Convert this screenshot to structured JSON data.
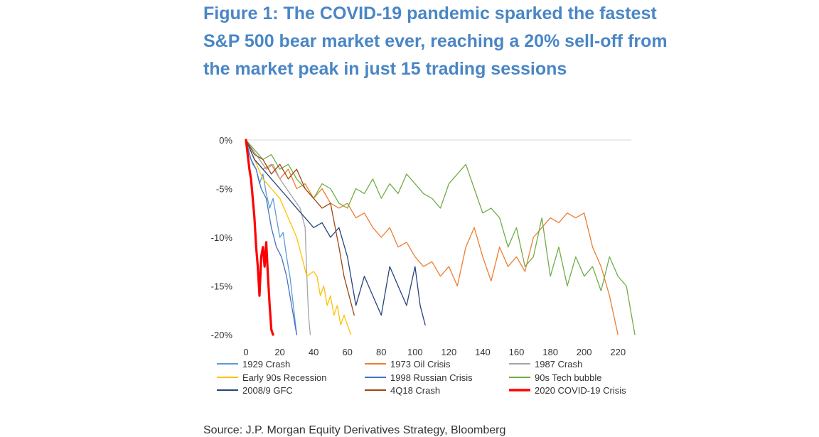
{
  "title": "Figure 1: The COVID-19 pandemic sparked the fastest S&P 500 bear market ever, reaching a 20% sell-off from the market peak in just 15 trading sessions",
  "source": "Source: J.P. Morgan Equity Derivatives Strategy, Bloomberg",
  "chart_data": {
    "type": "line",
    "title": "Figure 1: The COVID-19 pandemic sparked the fastest S&P 500 bear market ever, reaching a 20% sell-off from the market peak in just 15 trading sessions",
    "xlabel": "",
    "ylabel": "",
    "xlim": [
      0,
      230
    ],
    "ylim": [
      -20,
      0
    ],
    "xticks": [
      0,
      20,
      40,
      60,
      80,
      100,
      120,
      140,
      160,
      180,
      200,
      220
    ],
    "yticks": [
      0,
      -5,
      -10,
      -15,
      -20
    ],
    "ytick_labels": [
      "0%",
      "-5%",
      "-10%",
      "-15%",
      "-20%"
    ],
    "grid": "horizontal at 0% only",
    "legend_position": "bottom",
    "series": [
      {
        "name": "1929 Crash",
        "color": "#5b9bd5",
        "width": 1.3,
        "x": [
          0,
          2,
          4,
          6,
          8,
          10,
          12,
          14,
          16,
          18,
          20,
          22,
          24,
          26,
          28,
          30
        ],
        "y": [
          0,
          -1.5,
          -2.5,
          -3,
          -4.5,
          -3.5,
          -5.5,
          -7,
          -6,
          -8,
          -10,
          -9.5,
          -12,
          -14,
          -17,
          -20
        ]
      },
      {
        "name": "1973 Oil Crisis",
        "color": "#ed7d31",
        "width": 1.3,
        "x": [
          0,
          5,
          10,
          15,
          20,
          25,
          30,
          35,
          40,
          45,
          50,
          55,
          60,
          65,
          70,
          75,
          80,
          85,
          90,
          95,
          100,
          105,
          110,
          115,
          120,
          125,
          130,
          135,
          140,
          145,
          150,
          155,
          160,
          165,
          170,
          175,
          180,
          185,
          190,
          195,
          200,
          205,
          210,
          215,
          220
        ],
        "y": [
          0,
          -2,
          -3,
          -2.5,
          -4,
          -3,
          -5,
          -4.5,
          -6,
          -5,
          -6.5,
          -7,
          -6.5,
          -8,
          -7.5,
          -9,
          -10,
          -9,
          -11,
          -10.5,
          -12,
          -13,
          -12.5,
          -14,
          -13,
          -15,
          -11,
          -9,
          -12,
          -14.5,
          -11,
          -13,
          -12,
          -13.5,
          -10,
          -9,
          -8,
          -8.5,
          -7.5,
          -8,
          -7.5,
          -11,
          -13,
          -16,
          -20
        ]
      },
      {
        "name": "1987 Crash",
        "color": "#a5a5a5",
        "width": 1.3,
        "x": [
          0,
          4,
          8,
          12,
          16,
          20,
          24,
          28,
          32,
          35,
          36,
          37,
          38
        ],
        "y": [
          0,
          -1,
          -2,
          -3,
          -2.5,
          -4,
          -5,
          -6,
          -7,
          -9,
          -14,
          -18,
          -20
        ]
      },
      {
        "name": "Early 90s Recession",
        "color": "#ffc000",
        "width": 1.3,
        "x": [
          0,
          5,
          10,
          15,
          20,
          25,
          30,
          33,
          36,
          40,
          42,
          44,
          46,
          48,
          50,
          52,
          54,
          56,
          58,
          60,
          62
        ],
        "y": [
          0,
          -2,
          -4,
          -5,
          -6,
          -8,
          -10,
          -12,
          -14,
          -13.5,
          -14,
          -16,
          -15,
          -17,
          -16,
          -18,
          -17,
          -19,
          -18,
          -19,
          -20
        ]
      },
      {
        "name": "1998 Russian Crisis",
        "color": "#4472c4",
        "width": 1.3,
        "x": [
          0,
          3,
          6,
          9,
          12,
          15,
          18,
          21,
          24,
          27,
          30
        ],
        "y": [
          0,
          -2,
          -3,
          -5,
          -6,
          -9,
          -11,
          -12,
          -14,
          -17,
          -20
        ]
      },
      {
        "name": "90s Tech bubble",
        "color": "#70ad47",
        "width": 1.3,
        "x": [
          0,
          5,
          10,
          15,
          20,
          25,
          30,
          35,
          40,
          45,
          50,
          55,
          60,
          65,
          70,
          75,
          80,
          85,
          90,
          95,
          100,
          105,
          110,
          115,
          120,
          125,
          130,
          135,
          140,
          145,
          150,
          155,
          160,
          165,
          170,
          175,
          180,
          185,
          190,
          195,
          200,
          205,
          210,
          215,
          220,
          225,
          230
        ],
        "y": [
          0,
          -1,
          -2,
          -1.5,
          -3,
          -2.5,
          -4,
          -5,
          -6,
          -4.5,
          -5,
          -6.5,
          -7,
          -5,
          -5.5,
          -4,
          -6,
          -4.5,
          -5.5,
          -3.5,
          -4.5,
          -5.5,
          -6,
          -7,
          -4.5,
          -3.5,
          -2.5,
          -5,
          -7.5,
          -7,
          -8,
          -11,
          -9,
          -13,
          -12,
          -8,
          -14,
          -11,
          -15,
          -12,
          -14,
          -13,
          -15.5,
          -12,
          -14,
          -15,
          -20
        ]
      },
      {
        "name": "2008/9 GFC",
        "color": "#264478",
        "width": 1.3,
        "x": [
          0,
          5,
          10,
          15,
          20,
          25,
          30,
          35,
          40,
          45,
          50,
          55,
          60,
          65,
          70,
          75,
          80,
          85,
          90,
          95,
          100,
          103,
          106
        ],
        "y": [
          0,
          -2,
          -3,
          -4,
          -5,
          -6,
          -7,
          -8,
          -9,
          -8.5,
          -10,
          -9,
          -12,
          -17,
          -14,
          -16,
          -18,
          -13,
          -15,
          -17,
          -13,
          -17,
          -19
        ]
      },
      {
        "name": "4Q18 Crash",
        "color": "#9e480e",
        "width": 1.3,
        "x": [
          0,
          5,
          10,
          15,
          20,
          25,
          30,
          35,
          40,
          45,
          50,
          55,
          58,
          61,
          64
        ],
        "y": [
          0,
          -1.5,
          -2,
          -3.5,
          -2.5,
          -4,
          -3,
          -5,
          -6,
          -7,
          -6.5,
          -11,
          -14,
          -16,
          -18
        ]
      },
      {
        "name": "2020 COVID-19 Crisis",
        "color": "#ff0000",
        "width": 3.2,
        "x": [
          0,
          1,
          2,
          3,
          4,
          5,
          6,
          7,
          8,
          9,
          10,
          11,
          12,
          13,
          14,
          15,
          16
        ],
        "y": [
          0,
          -1.5,
          -3,
          -4,
          -6,
          -8,
          -11,
          -13,
          -16,
          -12,
          -11,
          -13,
          -10.5,
          -14,
          -17,
          -19.5,
          -20
        ]
      }
    ]
  }
}
